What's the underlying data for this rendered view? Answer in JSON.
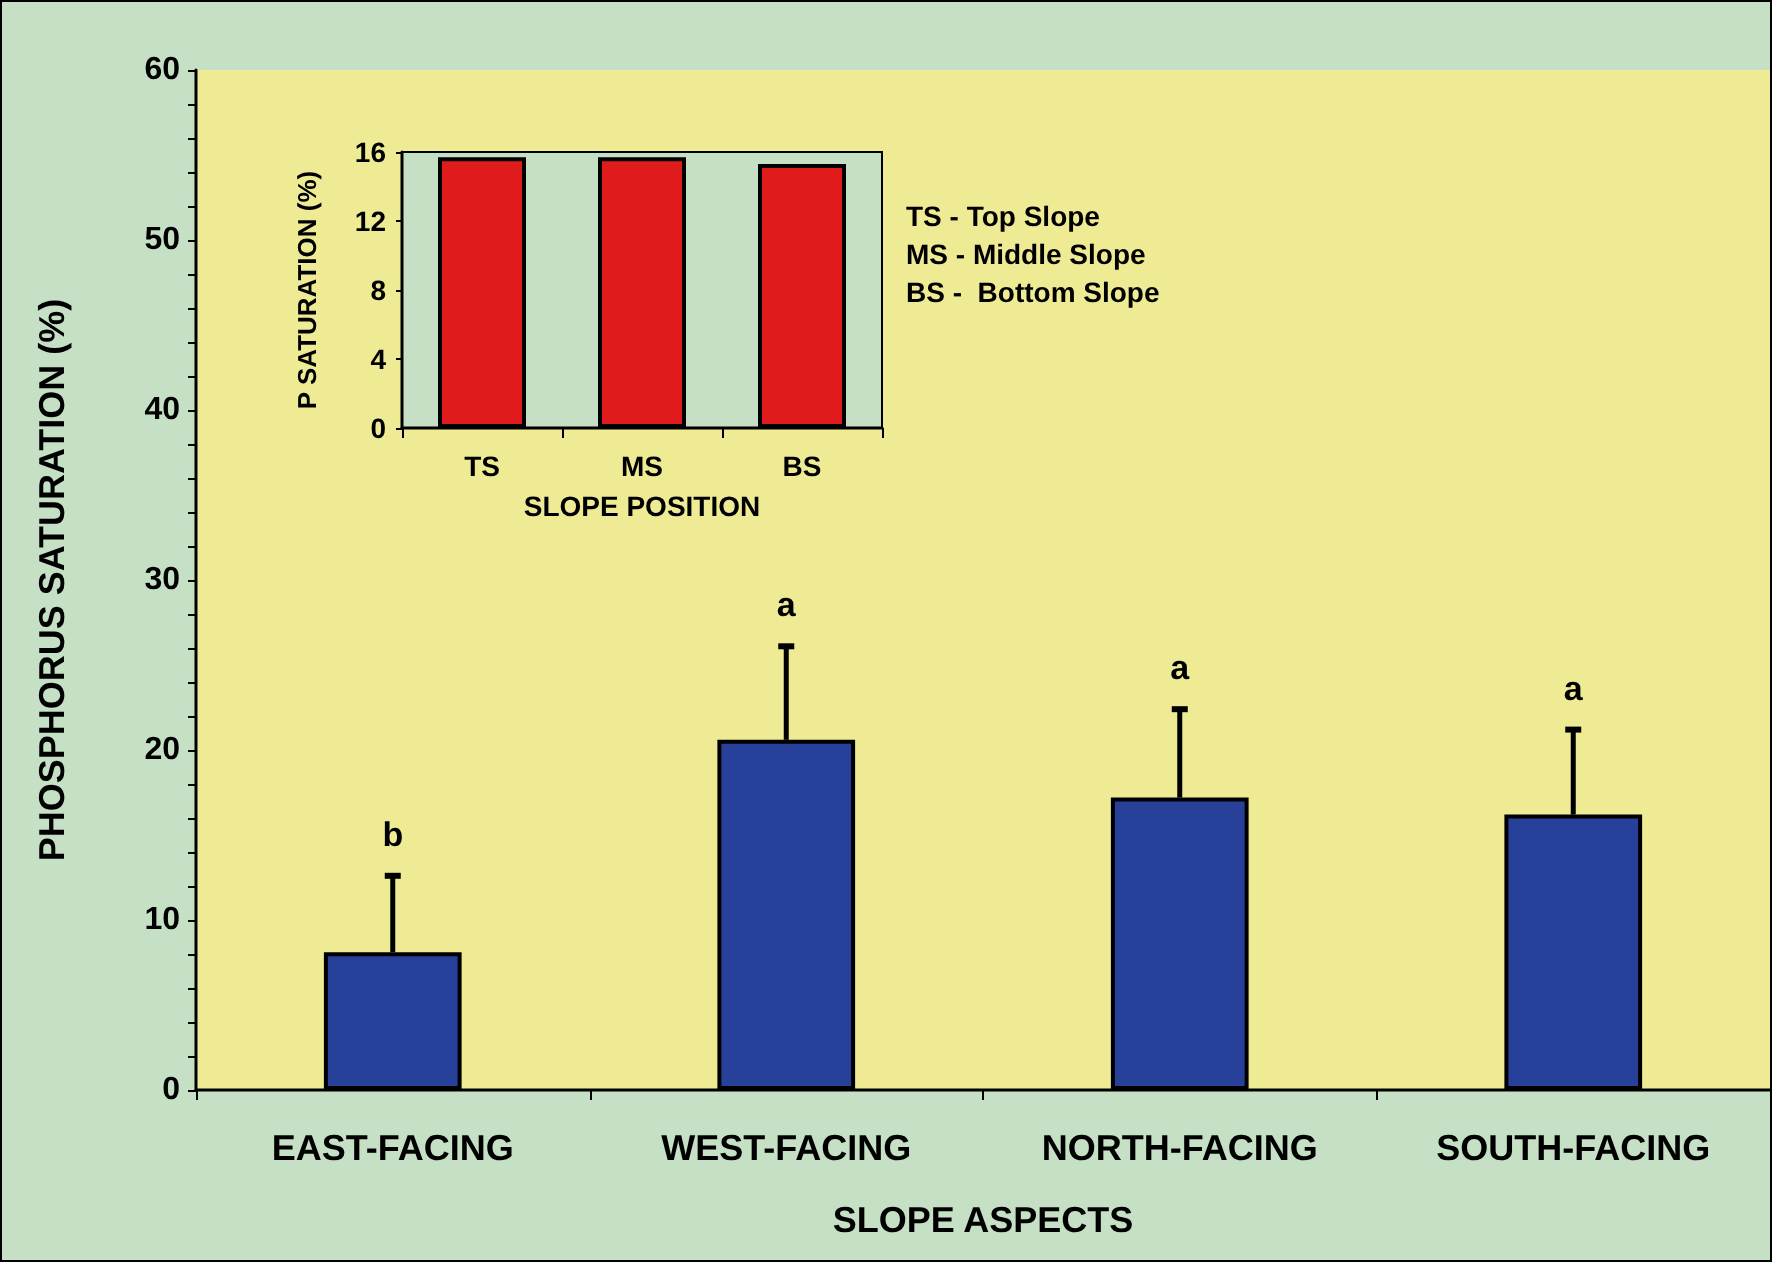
{
  "chart_data": [
    {
      "type": "bar",
      "xlabel": "SLOPE ASPECTS",
      "ylabel": "PHOSPHORUS SATURATION (%)",
      "categories": [
        "EAST-FACING",
        "WEST-FACING",
        "NORTH-FACING",
        "SOUTH-FACING"
      ],
      "values": [
        8.1,
        20.6,
        17.2,
        16.2
      ],
      "color": "#27409a",
      "errors": [
        [
          8.1,
          12.6
        ],
        [
          20.6,
          26.1
        ],
        [
          17.2,
          22.4
        ],
        [
          16.2,
          21.2
        ]
      ],
      "ylim": [
        0,
        60
      ],
      "yticks": [
        0,
        {
          "value": 2,
          "label": null
        },
        {
          "value": 4,
          "label": null
        },
        {
          "value": 6,
          "label": null
        },
        {
          "value": 8,
          "label": null
        },
        10,
        {
          "value": 12,
          "label": null
        },
        {
          "value": 14,
          "label": null
        },
        {
          "value": 16,
          "label": null
        },
        {
          "value": 18,
          "label": null
        },
        20,
        {
          "value": 22,
          "label": null
        },
        {
          "value": 24,
          "label": null
        },
        {
          "value": 26,
          "label": null
        },
        {
          "value": 28,
          "label": null
        },
        30,
        {
          "value": 32,
          "label": null
        },
        {
          "value": 34,
          "label": null
        },
        {
          "value": 36,
          "label": null
        },
        {
          "value": 38,
          "label": null
        },
        40,
        {
          "value": 42,
          "label": null
        },
        {
          "value": 44,
          "label": null
        },
        {
          "value": 46,
          "label": null
        },
        {
          "value": 48,
          "label": null
        },
        50,
        {
          "value": 52,
          "label": null
        },
        {
          "value": 54,
          "label": null
        },
        {
          "value": 56,
          "label": null
        },
        {
          "value": 58,
          "label": null
        },
        60
      ],
      "annotations": [
        {
          "text": "b",
          "x": "EAST-FACING",
          "y": 12.6
        },
        {
          "text": "a",
          "x": "WEST-FACING",
          "y": 26.1
        },
        {
          "text": "a",
          "x": "NORTH-FACING",
          "y": 22.4
        },
        {
          "text": "a",
          "x": "SOUTH-FACING",
          "y": 21.2
        }
      ],
      "grid": false
    },
    {
      "type": "bar",
      "xlabel": "SLOPE POSITION",
      "ylabel": "P SATURATION (%)",
      "categories": [
        "TS",
        "MS",
        "BS"
      ],
      "values": [
        15.7,
        15.7,
        15.3
      ],
      "color": "#e01b1b",
      "ylim": [
        0,
        16
      ],
      "yticks": [
        0,
        4,
        8,
        12,
        16
      ],
      "annotations": [
        "TS - Top Slope",
        "MS - Middle Slope",
        "BS -  Bottom Slope"
      ],
      "grid": false
    }
  ]
}
